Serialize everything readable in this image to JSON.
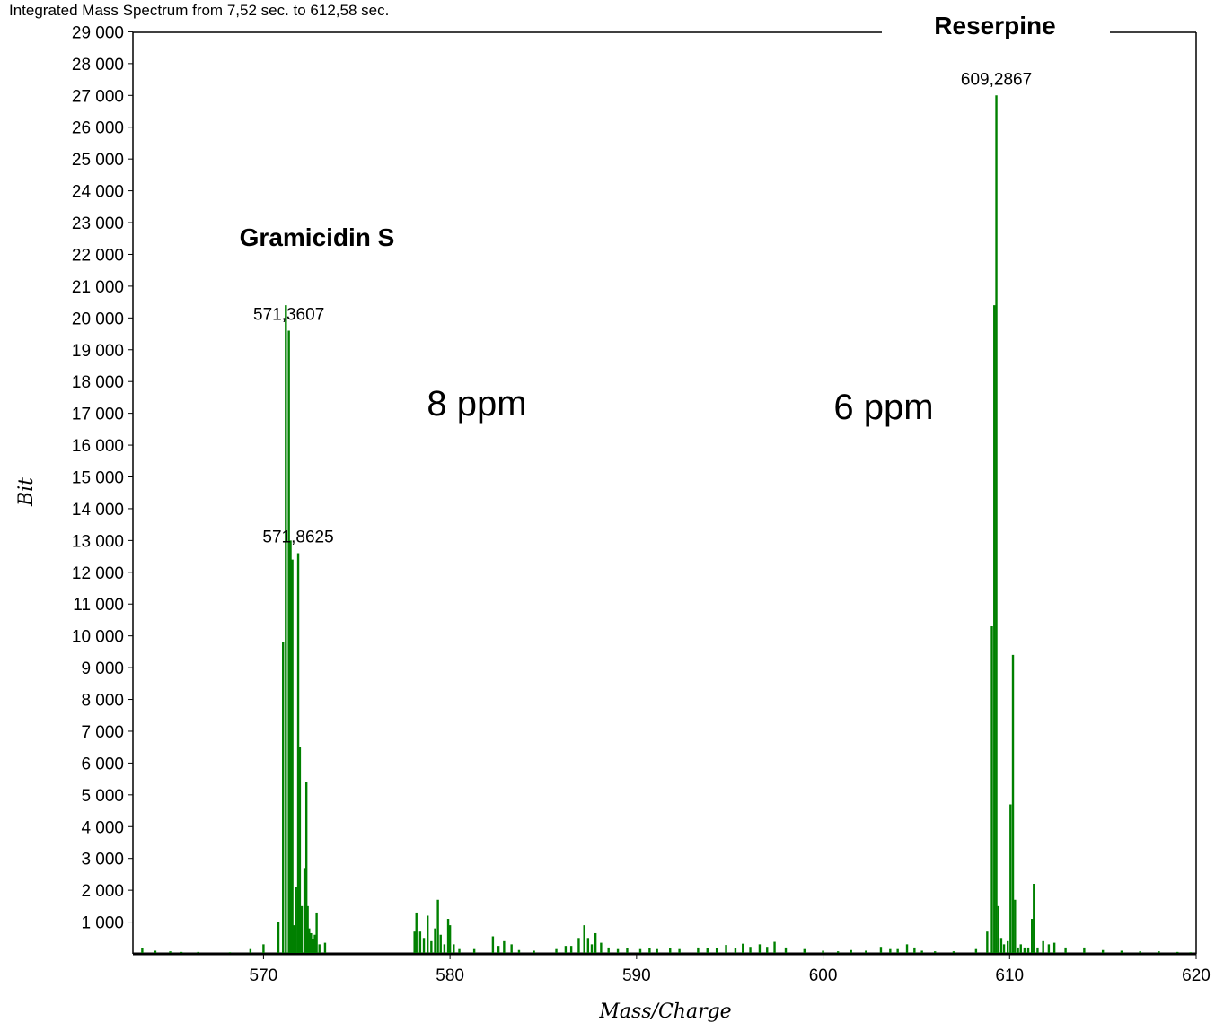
{
  "chart_data": {
    "type": "bar",
    "title": "Integrated Mass Spectrum from 7,52 sec. to 612,58 sec.",
    "xlabel": "Mass/Charge",
    "ylabel": "Bit",
    "xlim": [
      563,
      620
    ],
    "ylim": [
      0,
      30000
    ],
    "x_ticks": [
      "570",
      "580",
      "590",
      "600",
      "610",
      "620"
    ],
    "y_ticks": [
      "1 000",
      "2 000",
      "3 000",
      "4 000",
      "5 000",
      "6 000",
      "7 000",
      "8 000",
      "9 000",
      "10 000",
      "11 000",
      "12 000",
      "13 000",
      "14 000",
      "15 000",
      "16 000",
      "17 000",
      "18 000",
      "19 000",
      "20 000",
      "21 000",
      "22 000",
      "23 000",
      "24 000",
      "25 000",
      "26 000",
      "27 000",
      "28 000",
      "29 000"
    ],
    "grid": false,
    "series": [
      {
        "color": "#008000",
        "x": [
          563.5,
          564.2,
          565.0,
          565.6,
          566.5,
          568.2,
          569.3,
          570.0,
          570.8,
          571.05,
          571.2,
          571.36,
          571.45,
          571.55,
          571.62,
          571.75,
          571.86,
          571.95,
          572.05,
          572.2,
          572.3,
          572.37,
          572.45,
          572.55,
          572.65,
          572.75,
          572.85,
          573.0,
          573.3,
          578.1,
          578.2,
          578.4,
          578.6,
          578.8,
          579.0,
          579.2,
          579.35,
          579.5,
          579.7,
          579.9,
          580.0,
          580.2,
          580.5,
          581.3,
          582.3,
          582.6,
          582.9,
          583.3,
          583.7,
          584.5,
          585.7,
          586.2,
          586.5,
          586.9,
          587.2,
          587.4,
          587.6,
          587.8,
          588.1,
          588.5,
          589.0,
          589.5,
          590.2,
          590.7,
          591.1,
          591.8,
          592.3,
          593.3,
          593.8,
          594.3,
          594.8,
          595.3,
          595.7,
          596.1,
          596.6,
          597.0,
          597.4,
          598.0,
          599.0,
          600.0,
          600.8,
          601.5,
          602.3,
          603.1,
          603.6,
          604.0,
          604.5,
          604.9,
          605.3,
          606.0,
          607.0,
          608.2,
          608.8,
          609.05,
          609.18,
          609.29,
          609.4,
          609.55,
          609.7,
          609.9,
          610.05,
          610.18,
          610.29,
          610.45,
          610.6,
          610.8,
          611.0,
          611.2,
          611.3,
          611.5,
          611.8,
          612.1,
          612.4,
          613.0,
          614.0,
          615.0,
          616.0,
          617.0,
          618.0,
          619.0,
          619.7
        ],
        "values": [
          180,
          100,
          80,
          60,
          60,
          50,
          150,
          300,
          1000,
          9800,
          20400,
          19600,
          13000,
          12400,
          900,
          2100,
          12600,
          6500,
          1500,
          2700,
          5400,
          1500,
          800,
          650,
          480,
          600,
          1300,
          300,
          350,
          700,
          1300,
          700,
          500,
          1200,
          400,
          800,
          1700,
          600,
          300,
          1100,
          900,
          300,
          150,
          150,
          550,
          250,
          400,
          300,
          120,
          100,
          150,
          250,
          250,
          500,
          900,
          500,
          300,
          650,
          350,
          200,
          150,
          180,
          150,
          180,
          150,
          180,
          150,
          200,
          180,
          180,
          280,
          180,
          320,
          220,
          300,
          220,
          380,
          200,
          150,
          100,
          80,
          120,
          100,
          220,
          150,
          150,
          300,
          200,
          100,
          80,
          80,
          150,
          700,
          10300,
          20400,
          27000,
          1500,
          500,
          300,
          400,
          4700,
          9400,
          1700,
          200,
          300,
          200,
          200,
          1100,
          2200,
          200,
          400,
          300,
          350,
          200,
          200,
          120,
          100,
          80,
          80,
          60,
          50
        ]
      }
    ],
    "annotations": [
      {
        "text": "571,3607",
        "x": 571.36,
        "y": 19600
      },
      {
        "text": "571,8625",
        "x": 571.86,
        "y": 12600
      },
      {
        "text": "609,2867",
        "x": 609.29,
        "y": 27000
      }
    ],
    "labels": {
      "gramicidin": "Gramicidin S",
      "reserpine": "Reserpine",
      "ppm_left": "8 ppm",
      "ppm_right": "6 ppm"
    }
  }
}
